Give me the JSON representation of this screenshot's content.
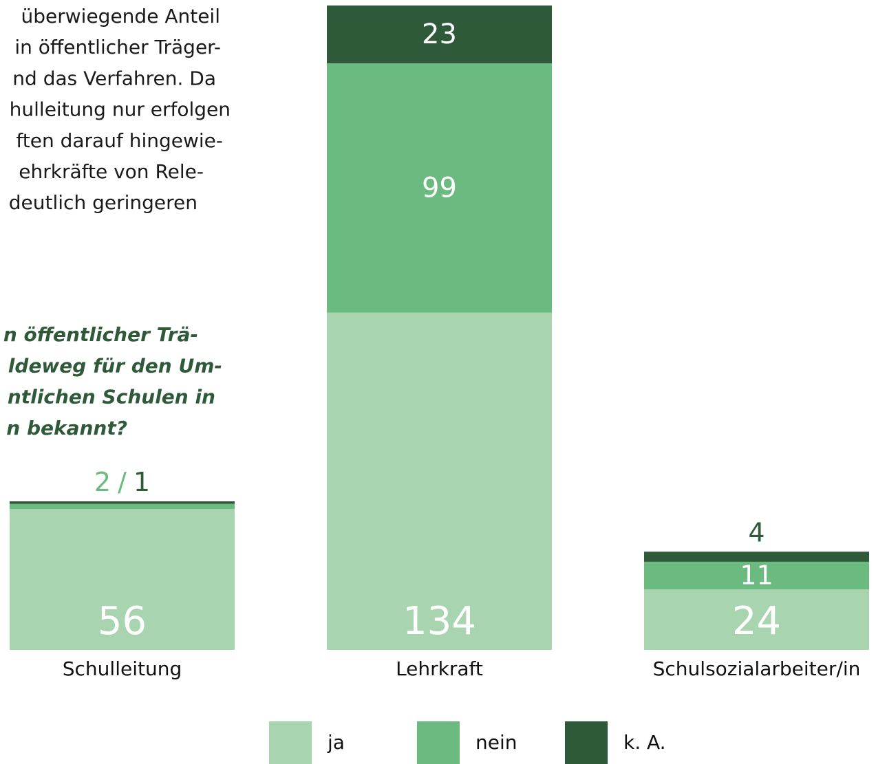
{
  "text": {
    "paragraph": [
      "überwiegende Anteil",
      "in öffentlicher Träger-",
      "nd das Verfahren. Da",
      "hulleitung nur erfolgen",
      "ften darauf hingewie-",
      "ehrkräfte von Rele-",
      "deutlich geringeren"
    ],
    "question": [
      "n öffentlicher Trä-",
      "ldeweg für den Um-",
      "ntlichen Schulen in",
      "n bekannt?"
    ]
  },
  "chart_data": {
    "type": "stacked_bar",
    "categories": [
      "Schulleitung",
      "Lehrkraft",
      "Schulsozialarbeiter/in"
    ],
    "series": [
      {
        "name": "ja",
        "color": "#a8d5b0",
        "values": [
          56,
          134,
          24
        ]
      },
      {
        "name": "nein",
        "color": "#6bbb80",
        "values": [
          2,
          99,
          11
        ]
      },
      {
        "name": "k. A.",
        "color": "#2e5a3a",
        "values": [
          1,
          23,
          4
        ]
      }
    ],
    "label_separator": "/"
  }
}
